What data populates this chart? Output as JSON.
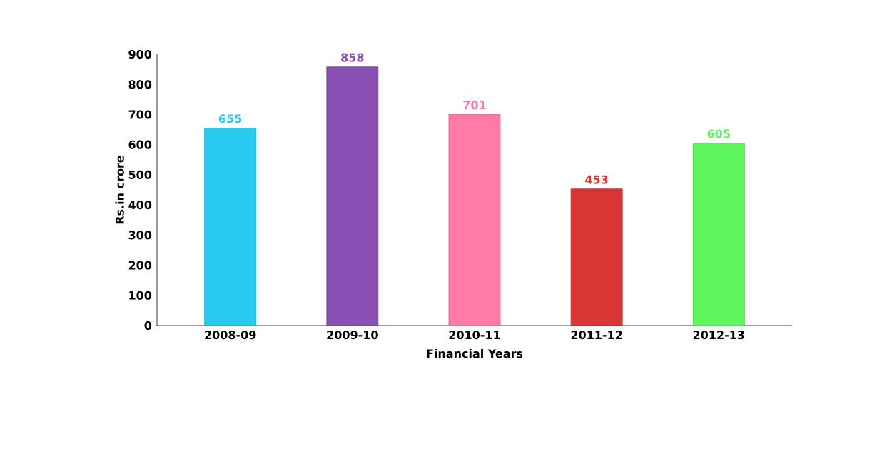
{
  "chart_data": {
    "type": "bar",
    "xlabel": "Financial Years",
    "ylabel": "Rs.in crore",
    "categories": [
      "2008-09",
      "2009-10",
      "2010-11",
      "2011-12",
      "2012-13"
    ],
    "values": [
      655,
      858,
      701,
      453,
      605
    ],
    "colors": [
      "#29c9f0",
      "#8a4fb5",
      "#ff7aa8",
      "#d93535",
      "#5cf55c"
    ],
    "ylim": [
      0,
      900
    ],
    "yticks": [
      0,
      100,
      200,
      300,
      400,
      500,
      600,
      700,
      800,
      900
    ],
    "data_labels": true
  }
}
